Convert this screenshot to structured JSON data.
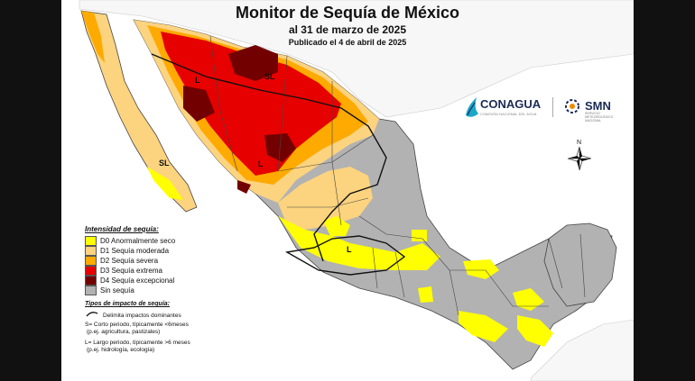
{
  "title": "Monitor de Sequía de México",
  "date_line": "al 31 de marzo de 2025",
  "published": "Publicado el 4 de abril de 2025",
  "legend": {
    "heading": "Intensidad de sequía:",
    "items": [
      {
        "label": "D0 Anormalmente seco",
        "color": "#ffff00"
      },
      {
        "label": "D1 Sequía moderada",
        "color": "#fcd37f"
      },
      {
        "label": "D2 Sequía severa",
        "color": "#ffaa00"
      },
      {
        "label": "D3 Sequía extrema",
        "color": "#e60000"
      },
      {
        "label": "D4 Sequía excepcional",
        "color": "#730000"
      },
      {
        "label": "Sin sequía",
        "color": "#b2b2b2"
      }
    ]
  },
  "impact_legend": {
    "heading": "Tipos de impacto de sequía:",
    "line_label": "Delimita impactos dominantes",
    "short_term": "S= Corto periodo, típicamente <6meses",
    "short_term_example": "(p.ej. agricultura, pastizales)",
    "long_term": "L= Largo periodo, típicamente >6 meses",
    "long_term_example": "(p.ej. hidrología, ecología)"
  },
  "map_labels": {
    "sl_north": "SL",
    "l_northwest": "L",
    "l_center_north": "L",
    "sl_baja": "SL",
    "l_center": "L"
  },
  "logos": {
    "conagua": "CONAGUA",
    "conagua_sub": "COMISIÓN NACIONAL DEL AGUA",
    "smn": "SMN",
    "smn_sub": "SERVICIO METEOROLÓGICO NACIONAL"
  },
  "compass": {
    "north": "N"
  },
  "colors": {
    "no_drought": "#b2b2b2",
    "d0": "#ffff00",
    "d1": "#fcd37f",
    "d2": "#ffaa00",
    "d3": "#e60000",
    "d4": "#730000",
    "borders": "#444444",
    "neighbors": "#f2f2f2"
  }
}
